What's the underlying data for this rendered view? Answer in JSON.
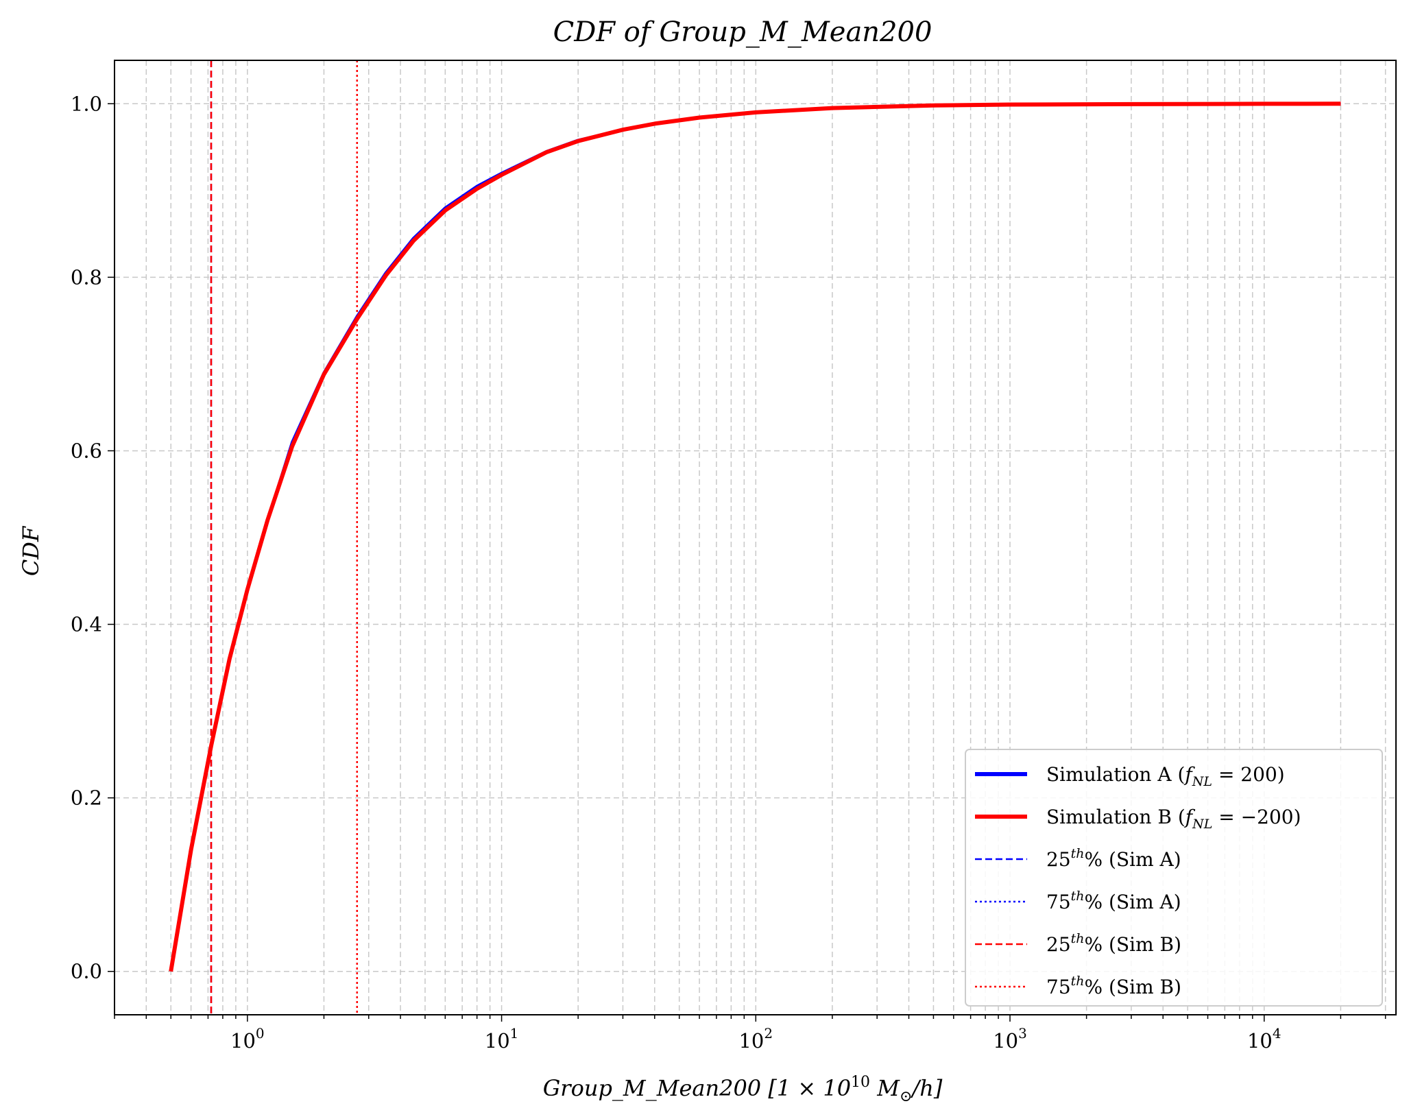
{
  "chart_data": {
    "type": "line",
    "title": "CDF of Group_M_Mean200",
    "xlabel": "Group_M_Mean200 [1 × 10",
    "xlabel_exp": "10",
    "xlabel_tail": " M",
    "xlabel_sub": "⊙",
    "xlabel_end": "/h]",
    "ylabel": "CDF",
    "x_scale": "log",
    "xlim": [
      0.3,
      33000
    ],
    "ylim": [
      -0.05,
      1.05
    ],
    "grid": true,
    "grid_style": "dashed",
    "legend_position": "lower-right",
    "x_ticks": [
      {
        "value": 1,
        "base": "10",
        "exp": "0"
      },
      {
        "value": 10,
        "base": "10",
        "exp": "1"
      },
      {
        "value": 100,
        "base": "10",
        "exp": "2"
      },
      {
        "value": 1000,
        "base": "10",
        "exp": "3"
      },
      {
        "value": 10000,
        "base": "10",
        "exp": "4"
      }
    ],
    "y_ticks": [
      "0.0",
      "0.2",
      "0.4",
      "0.6",
      "0.8",
      "1.0"
    ],
    "series": [
      {
        "name": "Simulation A (f_NL = 200)",
        "color": "#0000ff",
        "style": "solid",
        "x": [
          0.5,
          0.6,
          0.72,
          0.85,
          1.0,
          1.2,
          1.5,
          2.0,
          2.7,
          3.5,
          4.5,
          6.0,
          8.0,
          10,
          15,
          20,
          30,
          40,
          60,
          100,
          200,
          500,
          1000,
          3000,
          10000,
          20000
        ],
        "y": [
          0.0,
          0.14,
          0.26,
          0.36,
          0.44,
          0.52,
          0.61,
          0.69,
          0.755,
          0.805,
          0.845,
          0.88,
          0.905,
          0.92,
          0.945,
          0.958,
          0.97,
          0.977,
          0.984,
          0.99,
          0.995,
          0.998,
          0.999,
          0.9995,
          0.9999,
          1.0
        ]
      },
      {
        "name": "Simulation B (f_NL = −200)",
        "color": "#ff0000",
        "style": "solid",
        "x": [
          0.5,
          0.6,
          0.72,
          0.85,
          1.0,
          1.2,
          1.5,
          2.0,
          2.7,
          3.5,
          4.5,
          6.0,
          8.0,
          10,
          15,
          20,
          30,
          40,
          60,
          100,
          200,
          500,
          1000,
          3000,
          10000,
          20000
        ],
        "y": [
          0.0,
          0.14,
          0.26,
          0.36,
          0.44,
          0.52,
          0.605,
          0.688,
          0.752,
          0.802,
          0.842,
          0.877,
          0.902,
          0.918,
          0.944,
          0.957,
          0.97,
          0.977,
          0.984,
          0.99,
          0.995,
          0.998,
          0.999,
          0.9995,
          0.9999,
          1.0
        ]
      }
    ],
    "percentile_lines": [
      {
        "label": "25th% (Sim A)",
        "num": "25",
        "sup": "th",
        "rest": "% (Sim A)",
        "value": 0.72,
        "color": "#0000ff",
        "style": "dashed"
      },
      {
        "label": "75th% (Sim A)",
        "num": "75",
        "sup": "th",
        "rest": "% (Sim A)",
        "value": 2.7,
        "color": "#0000ff",
        "style": "dotted"
      },
      {
        "label": "25th% (Sim B)",
        "num": "25",
        "sup": "th",
        "rest": "% (Sim B)",
        "value": 0.72,
        "color": "#ff0000",
        "style": "dashed"
      },
      {
        "label": "75th% (Sim B)",
        "num": "75",
        "sup": "th",
        "rest": "% (Sim B)",
        "value": 2.7,
        "color": "#ff0000",
        "style": "dotted"
      }
    ],
    "legend_entries": [
      {
        "prefix": "Simulation A (",
        "f": "f",
        "sub": "NL",
        "suffix": " = 200)",
        "color": "#0000ff",
        "style": "solid"
      },
      {
        "prefix": "Simulation B (",
        "f": "f",
        "sub": "NL",
        "suffix": " = −200)",
        "color": "#ff0000",
        "style": "solid"
      }
    ]
  }
}
